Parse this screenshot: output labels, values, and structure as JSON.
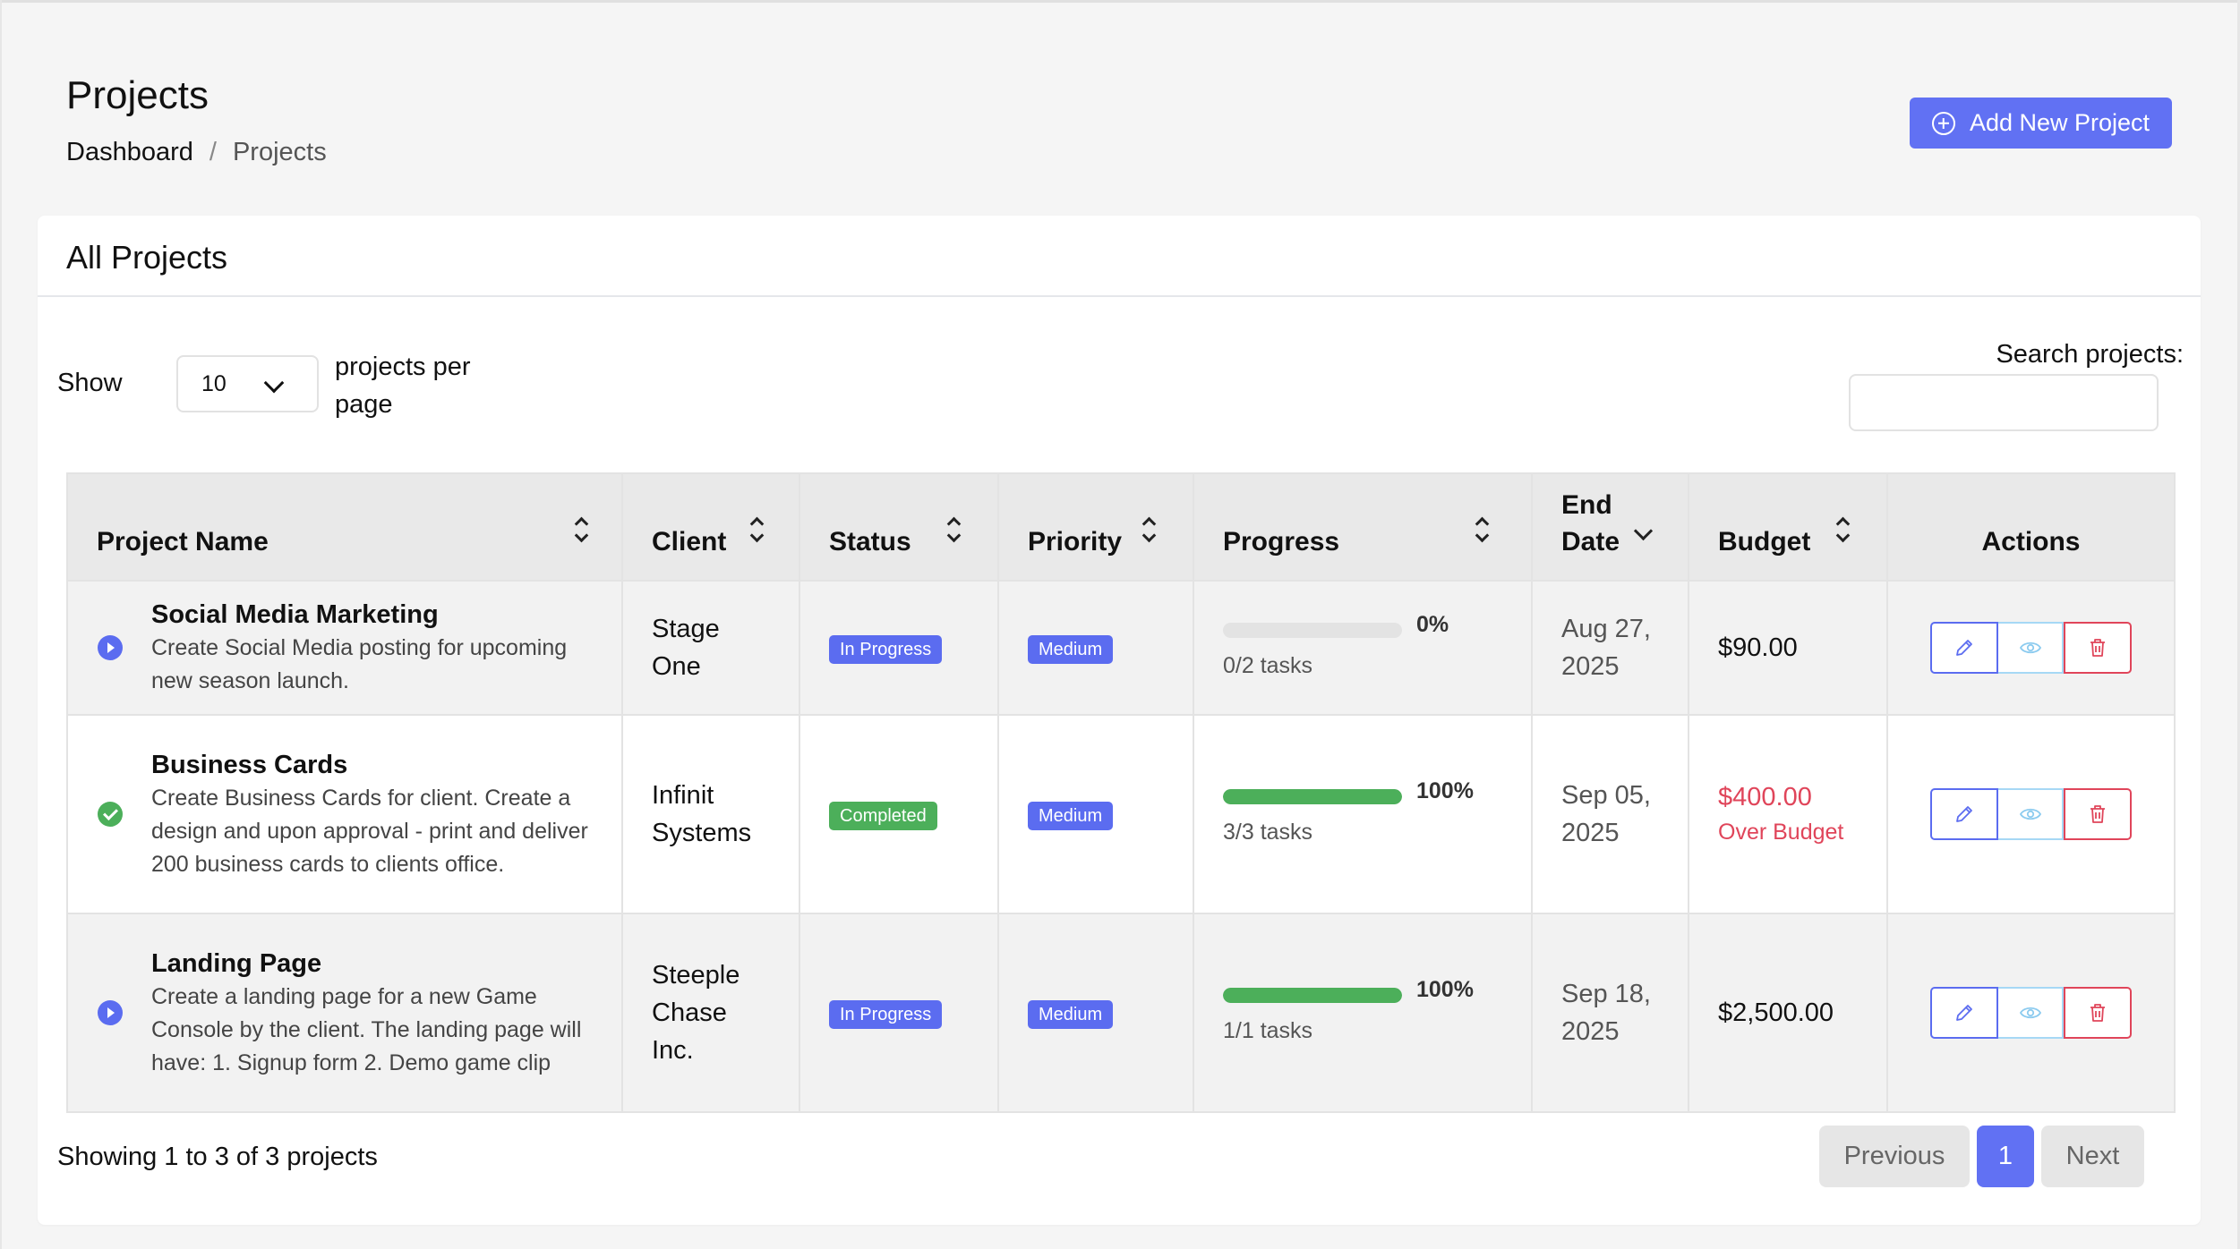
{
  "header": {
    "title": "Projects",
    "breadcrumb": {
      "home": "Dashboard",
      "separator": "/",
      "current": "Projects"
    },
    "add_button_label": "Add New Project",
    "add_button_icon": "plus-circle-icon"
  },
  "card": {
    "title": "All Projects"
  },
  "controls": {
    "show_label": "Show",
    "page_size": "10",
    "per_page_label": "projects per page",
    "search_label": "Search projects:",
    "search_value": ""
  },
  "table": {
    "columns": [
      {
        "label": "Project Name",
        "sort": "both"
      },
      {
        "label": "Client",
        "sort": "both"
      },
      {
        "label": "Status",
        "sort": "both"
      },
      {
        "label": "Priority",
        "sort": "both"
      },
      {
        "label": "Progress",
        "sort": "both"
      },
      {
        "label": "End Date",
        "sort": "desc"
      },
      {
        "label": "Budget",
        "sort": "both"
      },
      {
        "label": "Actions",
        "sort": "none"
      }
    ],
    "rows": [
      {
        "name": "Social Media Marketing",
        "description": "Create Social Media posting for upcoming new season launch.",
        "state_icon": "play-circle-icon",
        "client": "Stage One",
        "status": "In Progress",
        "priority": "Medium",
        "progress_pct": "0%",
        "progress_value": 0,
        "tasks": "0/2 tasks",
        "end_date": "Aug 27, 2025",
        "budget": "$90.00",
        "over_budget": false,
        "over_budget_label": ""
      },
      {
        "name": "Business Cards",
        "description": "Create Business Cards for client. Create a design and upon approval - print and deliver 200 business cards to clients office.",
        "state_icon": "check-circle-icon",
        "client": "Infinit Systems",
        "status": "Completed",
        "priority": "Medium",
        "progress_pct": "100%",
        "progress_value": 100,
        "tasks": "3/3 tasks",
        "end_date": "Sep 05, 2025",
        "budget": "$400.00",
        "over_budget": true,
        "over_budget_label": "Over Budget"
      },
      {
        "name": "Landing Page",
        "description": "Create a landing page for a new Game Console by the client. The landing page will have: 1. Signup form 2. Demo game clip",
        "state_icon": "play-circle-icon",
        "client": "Steeple Chase Inc.",
        "status": "In Progress",
        "priority": "Medium",
        "progress_pct": "100%",
        "progress_value": 100,
        "tasks": "1/1 tasks",
        "end_date": "Sep 18, 2025",
        "budget": "$2,500.00",
        "over_budget": false,
        "over_budget_label": ""
      }
    ]
  },
  "footer": {
    "info": "Showing 1 to 3 of 3 projects",
    "previous_label": "Previous",
    "current_page": "1",
    "next_label": "Next"
  },
  "colors": {
    "primary": "#6171f3",
    "success": "#4caf5a",
    "danger": "#e0455a",
    "info": "#a6d8f5"
  }
}
